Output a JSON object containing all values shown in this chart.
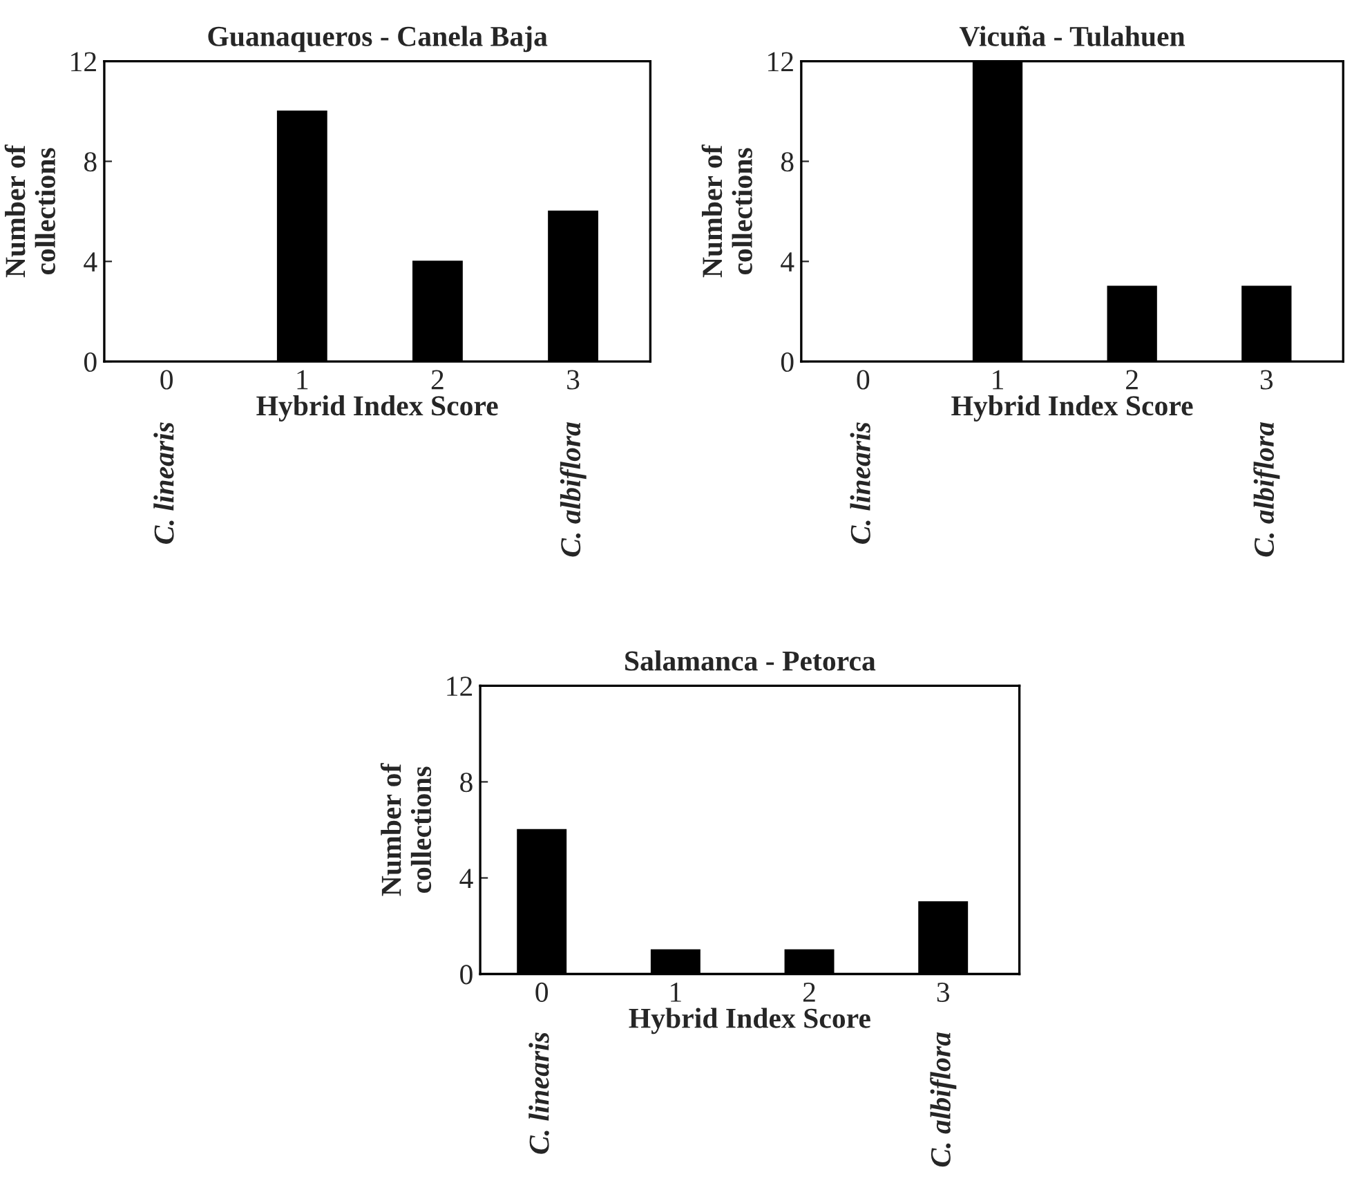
{
  "chart_data": [
    {
      "type": "bar",
      "title": "Guanaqueros - Canela Baja",
      "xlabel": "Hybrid Index Score",
      "ylabel": "Number of\ncollections",
      "categories": [
        "0",
        "1",
        "2",
        "3"
      ],
      "values": [
        0,
        10,
        4,
        6
      ],
      "color": "#000000",
      "ylim": [
        0,
        12
      ],
      "yticks": [
        0,
        4,
        8,
        12
      ],
      "annotations": [
        "C. linearis",
        "C. albiflora"
      ]
    },
    {
      "type": "bar",
      "title": "Vicuña - Tulahuen",
      "xlabel": "Hybrid Index Score",
      "ylabel": "Number of\ncollections",
      "categories": [
        "0",
        "1",
        "2",
        "3"
      ],
      "values": [
        0,
        12,
        3,
        3
      ],
      "color": "#000000",
      "ylim": [
        0,
        12
      ],
      "yticks": [
        0,
        4,
        8,
        12
      ],
      "annotations": [
        "C. linearis",
        "C. albiflora"
      ]
    },
    {
      "type": "bar",
      "title": "Salamanca - Petorca",
      "xlabel": "Hybrid Index Score",
      "ylabel": "Number of\ncollections",
      "categories": [
        "0",
        "1",
        "2",
        "3"
      ],
      "values": [
        6,
        1,
        1,
        3
      ],
      "color": "#000000",
      "ylim": [
        0,
        12
      ],
      "yticks": [
        0,
        4,
        8,
        12
      ],
      "annotations": [
        "C. linearis",
        "C. albiflora"
      ]
    }
  ]
}
